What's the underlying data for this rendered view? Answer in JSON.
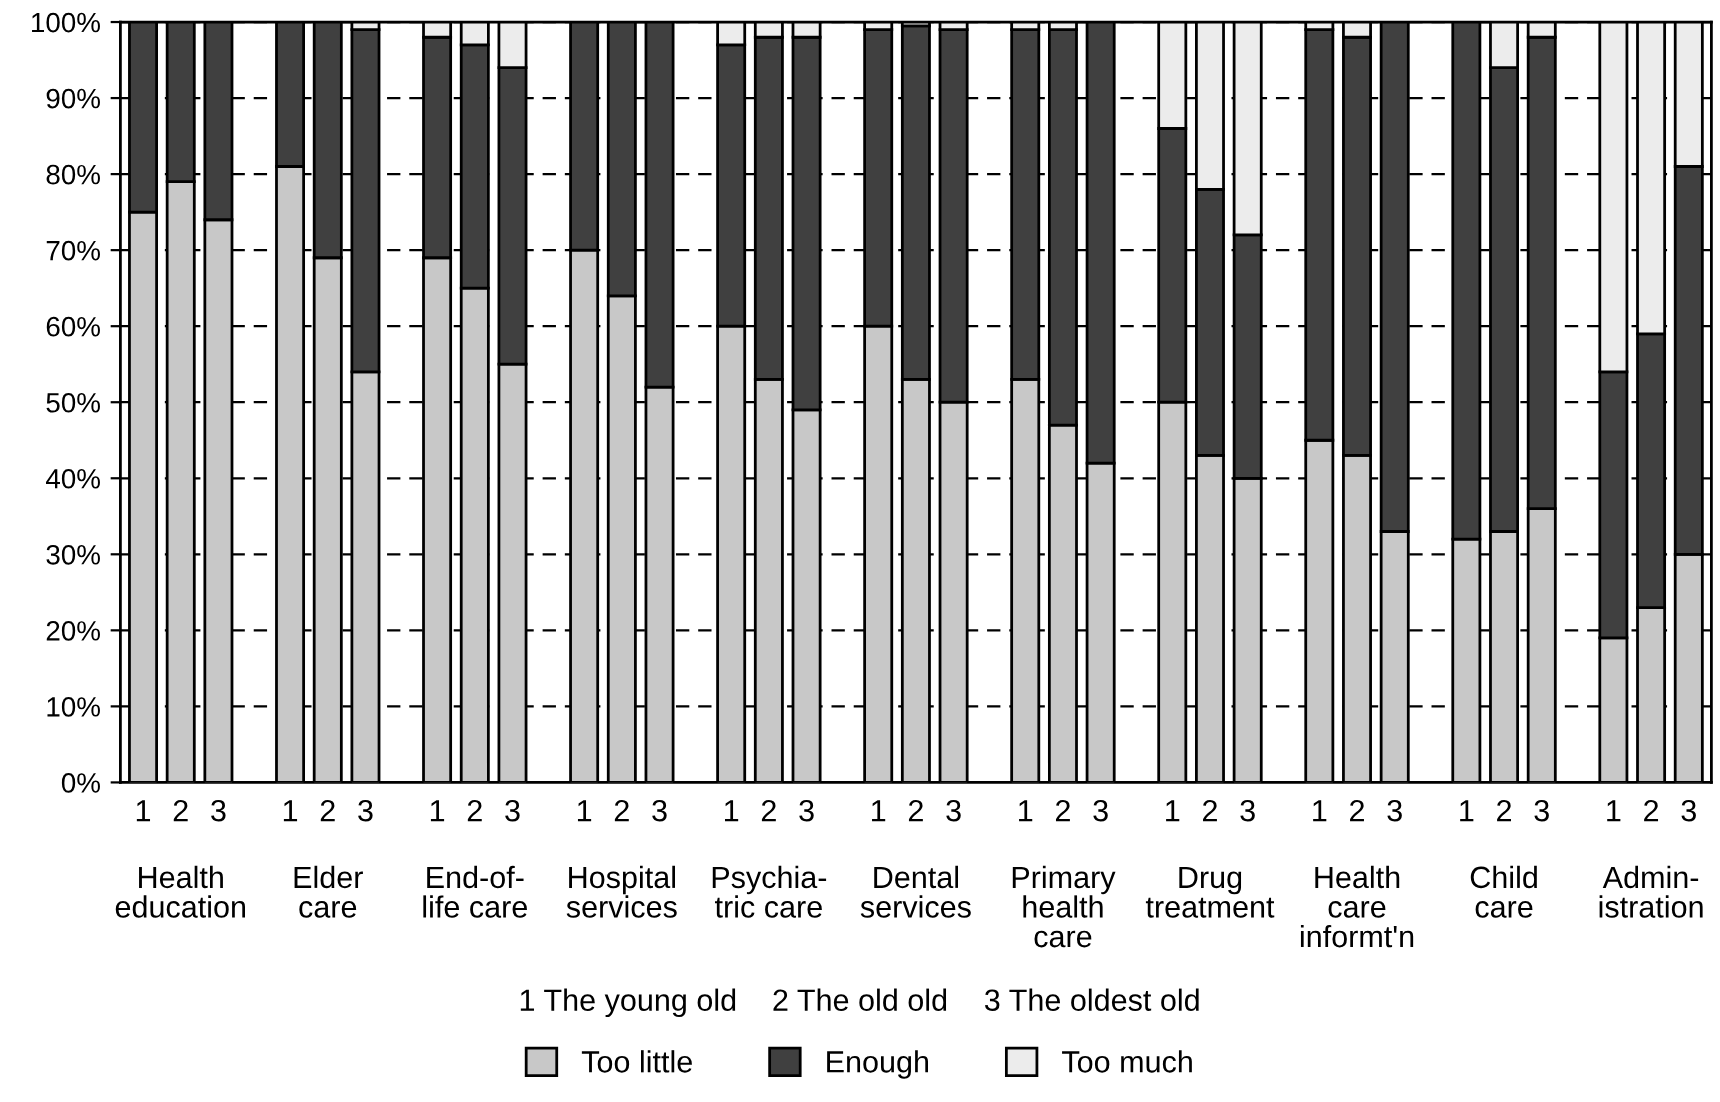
{
  "chart_data": {
    "type": "bar",
    "stacked": true,
    "categories": [
      "1",
      "2",
      "3",
      "1",
      "2",
      "3",
      "1",
      "2",
      "3",
      "1",
      "2",
      "3",
      "1",
      "2",
      "3",
      "1",
      "2",
      "3",
      "1",
      "2",
      "3",
      "1",
      "2",
      "3",
      "1",
      "2",
      "3",
      "1",
      "2",
      "3",
      "1",
      "2",
      "3"
    ],
    "series": [
      {
        "name": "Too little",
        "color": "#c8c8c8",
        "values": [
          75,
          79,
          74,
          81,
          69,
          54,
          69,
          65,
          55,
          70,
          64,
          52,
          60,
          53,
          49,
          60,
          53,
          50,
          53,
          47,
          42,
          50,
          43,
          40,
          45,
          43,
          33,
          32,
          33,
          36,
          19,
          23,
          30
        ]
      },
      {
        "name": "Enough",
        "color": "#404040",
        "values": [
          25,
          21,
          26,
          19,
          31,
          45,
          29,
          32,
          39,
          30,
          36,
          48,
          37,
          45,
          49,
          39,
          46.5,
          49,
          46,
          52,
          58,
          36,
          35,
          32,
          54,
          55,
          67,
          68,
          61,
          62,
          35,
          36,
          51
        ]
      },
      {
        "name": "Too much",
        "color": "#ececec",
        "values": [
          null,
          null,
          null,
          null,
          null,
          1,
          2,
          3,
          6,
          null,
          null,
          null,
          3,
          2,
          2,
          1,
          0.5,
          1,
          1,
          1,
          null,
          14,
          22,
          28,
          1,
          2,
          null,
          null,
          6,
          2,
          46,
          41,
          19
        ]
      }
    ],
    "ylim": [
      0,
      100
    ],
    "yticks": [
      {
        "value": 0,
        "label": "0%"
      },
      {
        "value": 10,
        "label": "10%"
      },
      {
        "value": 20,
        "label": "20%"
      },
      {
        "value": 30,
        "label": "30%"
      },
      {
        "value": 40,
        "label": "40%"
      },
      {
        "value": 50,
        "label": "50%"
      },
      {
        "value": 60,
        "label": "60%"
      },
      {
        "value": 70,
        "label": "70%"
      },
      {
        "value": 80,
        "label": "80%"
      },
      {
        "value": 90,
        "label": "90%"
      },
      {
        "value": 100,
        "label": "100%"
      }
    ],
    "grid": "y",
    "legend": "bottom",
    "annotations": [
      "Health\neducation",
      "Elder\ncare",
      "End-of-\nlife care",
      "Hospital\nservices",
      "Psychia-\ntric care",
      "Dental\nservices",
      "Primary\nhealth\ncare",
      "Drug\ntreatment",
      "Health\ncare\ninformt'n",
      "Child\ncare",
      "Admin-\nistration",
      "1 The young old",
      "2 The old old",
      "3 The oldest old"
    ]
  }
}
